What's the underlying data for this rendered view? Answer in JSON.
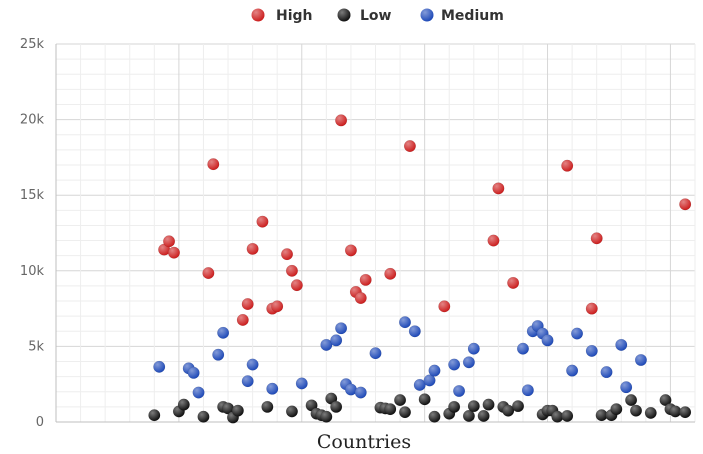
{
  "chart_data": {
    "type": "scatter",
    "xlabel": "Countries",
    "ylabel": "",
    "ylim": [
      0,
      25000
    ],
    "yticks": [
      {
        "value": 0,
        "label": "0"
      },
      {
        "value": 5000,
        "label": "5k"
      },
      {
        "value": 10000,
        "label": "10k"
      },
      {
        "value": 15000,
        "label": "15k"
      },
      {
        "value": 20000,
        "label": "20k"
      },
      {
        "value": 25000,
        "label": "25k"
      }
    ],
    "xlim": [
      0,
      130
    ],
    "grid": true,
    "legend_position": "top-center",
    "series": [
      {
        "name": "High",
        "color": "#cc1f1f",
        "points": [
          {
            "x": 22,
            "y": 11400
          },
          {
            "x": 23,
            "y": 11950
          },
          {
            "x": 24,
            "y": 11200
          },
          {
            "x": 31,
            "y": 9850
          },
          {
            "x": 32,
            "y": 17050
          },
          {
            "x": 38,
            "y": 6750
          },
          {
            "x": 39,
            "y": 7800
          },
          {
            "x": 40,
            "y": 11450
          },
          {
            "x": 42,
            "y": 13250
          },
          {
            "x": 44,
            "y": 7500
          },
          {
            "x": 45,
            "y": 7650
          },
          {
            "x": 47,
            "y": 11100
          },
          {
            "x": 48,
            "y": 10000
          },
          {
            "x": 49,
            "y": 9050
          },
          {
            "x": 58,
            "y": 19950
          },
          {
            "x": 60,
            "y": 11350
          },
          {
            "x": 61,
            "y": 8600
          },
          {
            "x": 62,
            "y": 8200
          },
          {
            "x": 63,
            "y": 9400
          },
          {
            "x": 68,
            "y": 9800
          },
          {
            "x": 72,
            "y": 18250
          },
          {
            "x": 79,
            "y": 7650
          },
          {
            "x": 89,
            "y": 12000
          },
          {
            "x": 90,
            "y": 15450
          },
          {
            "x": 93,
            "y": 9200
          },
          {
            "x": 104,
            "y": 16950
          },
          {
            "x": 109,
            "y": 7500
          },
          {
            "x": 110,
            "y": 12150
          },
          {
            "x": 128,
            "y": 14400
          }
        ]
      },
      {
        "name": "Low",
        "color": "#111111",
        "points": [
          {
            "x": 20,
            "y": 450
          },
          {
            "x": 25,
            "y": 700
          },
          {
            "x": 26,
            "y": 1150
          },
          {
            "x": 30,
            "y": 350
          },
          {
            "x": 34,
            "y": 1000
          },
          {
            "x": 35,
            "y": 900
          },
          {
            "x": 36,
            "y": 300
          },
          {
            "x": 37,
            "y": 750
          },
          {
            "x": 43,
            "y": 1000
          },
          {
            "x": 48,
            "y": 700
          },
          {
            "x": 52,
            "y": 1100
          },
          {
            "x": 53,
            "y": 550
          },
          {
            "x": 54,
            "y": 450
          },
          {
            "x": 55,
            "y": 350
          },
          {
            "x": 56,
            "y": 1550
          },
          {
            "x": 57,
            "y": 1000
          },
          {
            "x": 66,
            "y": 950
          },
          {
            "x": 67,
            "y": 900
          },
          {
            "x": 68,
            "y": 850
          },
          {
            "x": 70,
            "y": 1450
          },
          {
            "x": 71,
            "y": 650
          },
          {
            "x": 75,
            "y": 1500
          },
          {
            "x": 77,
            "y": 350
          },
          {
            "x": 80,
            "y": 550
          },
          {
            "x": 81,
            "y": 1000
          },
          {
            "x": 84,
            "y": 400
          },
          {
            "x": 85,
            "y": 1050
          },
          {
            "x": 87,
            "y": 400
          },
          {
            "x": 88,
            "y": 1150
          },
          {
            "x": 91,
            "y": 1000
          },
          {
            "x": 92,
            "y": 750
          },
          {
            "x": 94,
            "y": 1050
          },
          {
            "x": 99,
            "y": 500
          },
          {
            "x": 100,
            "y": 750
          },
          {
            "x": 101,
            "y": 750
          },
          {
            "x": 102,
            "y": 350
          },
          {
            "x": 104,
            "y": 400
          },
          {
            "x": 111,
            "y": 450
          },
          {
            "x": 113,
            "y": 450
          },
          {
            "x": 114,
            "y": 850
          },
          {
            "x": 117,
            "y": 1450
          },
          {
            "x": 118,
            "y": 750
          },
          {
            "x": 121,
            "y": 600
          },
          {
            "x": 124,
            "y": 1450
          },
          {
            "x": 125,
            "y": 850
          },
          {
            "x": 126,
            "y": 700
          },
          {
            "x": 128,
            "y": 650
          }
        ]
      },
      {
        "name": "Medium",
        "color": "#1f4ab8",
        "points": [
          {
            "x": 21,
            "y": 3650
          },
          {
            "x": 27,
            "y": 3550
          },
          {
            "x": 28,
            "y": 3250
          },
          {
            "x": 29,
            "y": 1950
          },
          {
            "x": 33,
            "y": 4450
          },
          {
            "x": 34,
            "y": 5900
          },
          {
            "x": 39,
            "y": 2700
          },
          {
            "x": 40,
            "y": 3800
          },
          {
            "x": 44,
            "y": 2200
          },
          {
            "x": 50,
            "y": 2550
          },
          {
            "x": 55,
            "y": 5100
          },
          {
            "x": 57,
            "y": 5400
          },
          {
            "x": 58,
            "y": 6200
          },
          {
            "x": 59,
            "y": 2500
          },
          {
            "x": 60,
            "y": 2150
          },
          {
            "x": 62,
            "y": 1950
          },
          {
            "x": 65,
            "y": 4550
          },
          {
            "x": 71,
            "y": 6600
          },
          {
            "x": 73,
            "y": 6000
          },
          {
            "x": 74,
            "y": 2450
          },
          {
            "x": 76,
            "y": 2750
          },
          {
            "x": 77,
            "y": 3400
          },
          {
            "x": 81,
            "y": 3800
          },
          {
            "x": 82,
            "y": 2050
          },
          {
            "x": 84,
            "y": 3950
          },
          {
            "x": 85,
            "y": 4850
          },
          {
            "x": 95,
            "y": 4850
          },
          {
            "x": 96,
            "y": 2100
          },
          {
            "x": 97,
            "y": 6000
          },
          {
            "x": 98,
            "y": 6350
          },
          {
            "x": 99,
            "y": 5850
          },
          {
            "x": 100,
            "y": 5400
          },
          {
            "x": 105,
            "y": 3400
          },
          {
            "x": 106,
            "y": 5850
          },
          {
            "x": 109,
            "y": 4700
          },
          {
            "x": 112,
            "y": 3300
          },
          {
            "x": 115,
            "y": 5100
          },
          {
            "x": 116,
            "y": 2300
          },
          {
            "x": 119,
            "y": 4100
          }
        ]
      }
    ]
  }
}
